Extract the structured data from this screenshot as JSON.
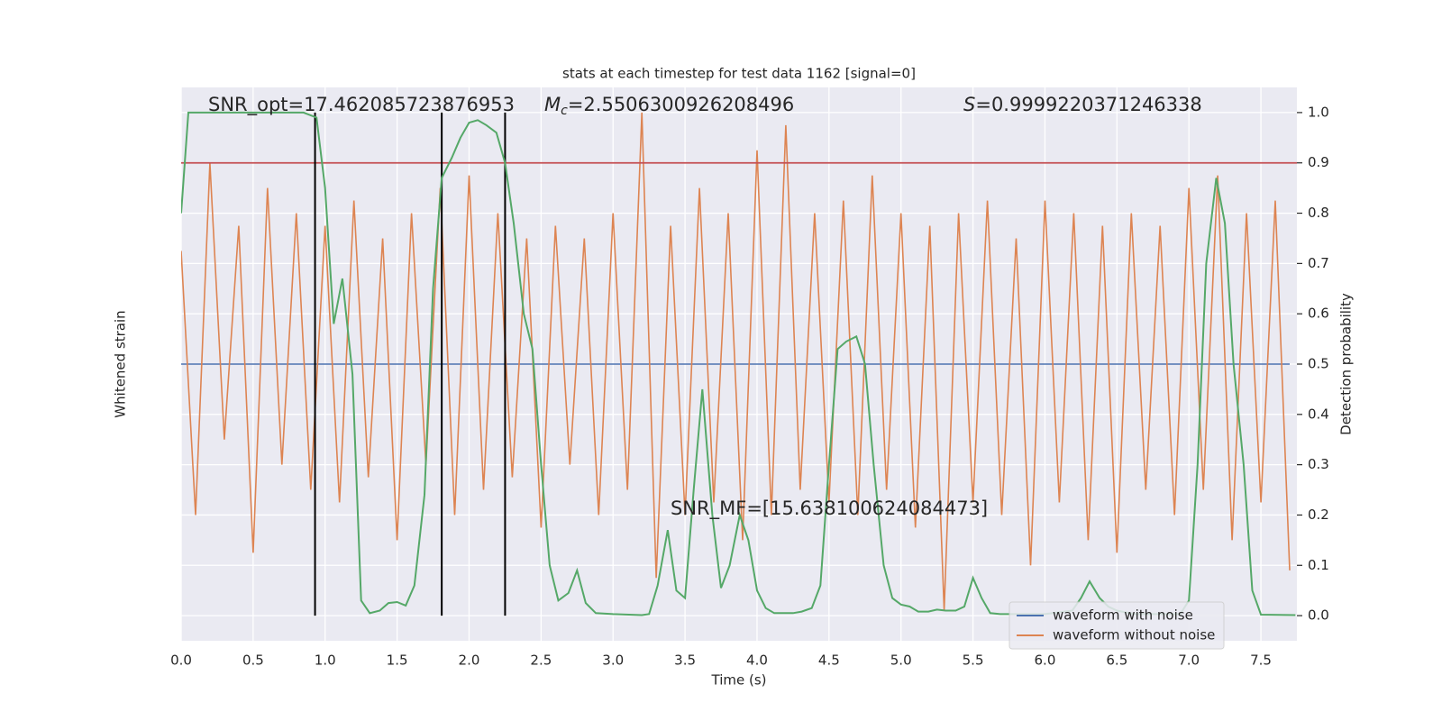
{
  "chart_data": {
    "type": "line",
    "title": "stats at each timestep for test data 1162 [signal=0]",
    "xlabel": "Time (s)",
    "ylabel": "Whitened strain",
    "y2label": "Detection probability",
    "background": "#eaeaf2",
    "grid": true,
    "legend": "lower right",
    "xlim": [
      0,
      7.75
    ],
    "xticks": [
      {
        "value": 0,
        "label": "0.0"
      },
      0.5,
      {
        "value": 1,
        "label": "1.0"
      },
      1.5,
      {
        "value": 2,
        "label": "2.0"
      },
      2.5,
      {
        "value": 3,
        "label": "3.0"
      },
      3.5,
      {
        "value": 4,
        "label": "4.0"
      },
      4.5,
      {
        "value": 5,
        "label": "5.0"
      },
      5.5,
      {
        "value": 6,
        "label": "6.0"
      },
      6.5,
      {
        "value": 7,
        "label": "7.0"
      },
      7.5
    ],
    "ylim": [
      -1.1,
      1.1
    ],
    "y2lim": [
      -0.05,
      1.05
    ],
    "y2ticks": [
      {
        "value": 0,
        "label": "0.0"
      },
      0.1,
      0.2,
      0.3,
      0.4,
      0.5,
      0.6,
      0.7,
      0.8,
      0.9,
      {
        "value": 1,
        "label": "1.0"
      }
    ],
    "x": [
      0,
      0.1,
      0.2,
      0.3,
      0.4,
      0.5,
      0.6,
      0.7,
      0.8,
      0.9,
      1,
      1.1,
      1.2,
      1.3,
      1.4,
      1.5,
      1.6,
      1.7,
      1.8,
      1.9,
      2,
      2.1,
      2.2,
      2.3,
      2.4,
      2.5,
      2.6,
      2.7,
      2.8,
      2.9,
      3,
      3.1,
      3.2,
      3.3,
      3.4,
      3.5,
      3.6,
      3.7,
      3.8,
      3.9,
      4,
      4.1,
      4.2,
      4.3,
      4.4,
      4.5,
      4.6,
      4.7,
      4.8,
      4.9,
      5,
      5.1,
      5.2,
      5.3,
      5.4,
      5.5,
      5.6,
      5.7,
      5.8,
      5.9,
      6,
      6.1,
      6.2,
      6.3,
      6.4,
      6.5,
      6.6,
      6.7,
      6.8,
      6.9,
      7,
      7.1,
      7.2,
      7.3,
      7.4,
      7.5,
      7.6,
      7.7
    ],
    "series": [
      {
        "name": "waveform with noise",
        "color": "#4c72b0",
        "values": [
          0,
          0,
          0,
          0,
          0,
          0,
          0,
          0,
          0,
          0,
          0,
          0,
          0,
          0,
          0,
          0,
          0,
          0,
          0,
          0,
          0,
          0,
          0,
          0,
          0,
          0,
          0,
          0,
          0,
          0,
          0,
          0,
          0,
          0,
          0,
          0,
          0,
          0,
          0,
          0,
          0,
          0,
          0,
          0,
          0,
          0,
          0,
          0,
          0,
          0,
          0,
          0,
          0,
          0,
          0,
          0,
          0,
          0,
          0,
          0,
          0,
          0,
          0,
          0,
          0,
          0,
          0,
          0,
          0,
          0,
          0,
          0,
          0,
          0,
          0,
          0,
          0,
          0
        ]
      },
      {
        "name": "waveform without noise",
        "color": "#dd8452",
        "values": [
          0.45,
          -0.6,
          0.8,
          -0.3,
          0.55,
          -0.75,
          0.7,
          -0.4,
          0.6,
          -0.5,
          0.55,
          -0.55,
          0.65,
          -0.45,
          0.5,
          -0.7,
          0.6,
          -0.4,
          0.7,
          -0.6,
          0.75,
          -0.5,
          0.6,
          -0.45,
          0.5,
          -0.65,
          0.55,
          -0.4,
          0.5,
          -0.6,
          0.6,
          -0.5,
          1.0,
          -0.85,
          0.55,
          -0.6,
          0.7,
          -0.55,
          0.6,
          -0.7,
          0.85,
          -0.6,
          0.95,
          -0.5,
          0.6,
          -0.55,
          0.65,
          -0.6,
          0.75,
          -0.5,
          0.6,
          -0.65,
          0.55,
          -0.98,
          0.6,
          -0.55,
          0.65,
          -0.6,
          0.5,
          -0.8,
          0.65,
          -0.55,
          0.6,
          -0.7,
          0.55,
          -0.75,
          0.6,
          -0.5,
          0.55,
          -0.6,
          0.7,
          -0.5,
          0.75,
          -0.7,
          0.6,
          -0.55,
          0.65,
          -0.82
        ]
      },
      {
        "color": "#55a868",
        "axis": "y2",
        "x": [
          0,
          0.05,
          0.12,
          0.85,
          0.94,
          1.0,
          1.06,
          1.12,
          1.19,
          1.25,
          1.31,
          1.38,
          1.44,
          1.5,
          1.56,
          1.62,
          1.69,
          1.75,
          1.81,
          1.88,
          1.94,
          2.0,
          2.06,
          2.12,
          2.19,
          2.25,
          2.31,
          2.38,
          2.44,
          2.5,
          2.56,
          2.62,
          2.69,
          2.75,
          2.81,
          2.88,
          3.0,
          3.2,
          3.25,
          3.31,
          3.38,
          3.44,
          3.5,
          3.56,
          3.62,
          3.69,
          3.75,
          3.81,
          3.88,
          3.94,
          4.0,
          4.06,
          4.12,
          4.25,
          4.31,
          4.38,
          4.44,
          4.5,
          4.56,
          4.62,
          4.69,
          4.75,
          4.81,
          4.88,
          4.94,
          5.0,
          5.06,
          5.12,
          5.19,
          5.25,
          5.31,
          5.38,
          5.44,
          5.5,
          5.56,
          5.62,
          5.69,
          6.0,
          6.19,
          6.25,
          6.31,
          6.38,
          6.44,
          6.5,
          6.62,
          6.94,
          7.0,
          7.06,
          7.12,
          7.19,
          7.25,
          7.31,
          7.38,
          7.44,
          7.5,
          7.74
        ],
        "values": [
          0.8,
          1.0,
          1.0,
          1.0,
          0.99,
          0.85,
          0.58,
          0.67,
          0.48,
          0.03,
          0.005,
          0.01,
          0.025,
          0.027,
          0.02,
          0.06,
          0.24,
          0.65,
          0.87,
          0.91,
          0.95,
          0.98,
          0.985,
          0.975,
          0.96,
          0.9,
          0.78,
          0.6,
          0.53,
          0.3,
          0.1,
          0.03,
          0.045,
          0.09,
          0.025,
          0.005,
          0.003,
          0.001,
          0.003,
          0.06,
          0.17,
          0.05,
          0.035,
          0.25,
          0.45,
          0.2,
          0.055,
          0.1,
          0.2,
          0.15,
          0.05,
          0.015,
          0.005,
          0.005,
          0.008,
          0.015,
          0.06,
          0.3,
          0.53,
          0.545,
          0.555,
          0.5,
          0.3,
          0.1,
          0.035,
          0.022,
          0.018,
          0.008,
          0.008,
          0.012,
          0.01,
          0.01,
          0.018,
          0.075,
          0.035,
          0.005,
          0.003,
          0.003,
          0.01,
          0.035,
          0.068,
          0.035,
          0.018,
          0.01,
          0.003,
          0.003,
          0.03,
          0.3,
          0.7,
          0.87,
          0.78,
          0.5,
          0.3,
          0.05,
          0.002,
          0.001
        ]
      }
    ],
    "threshold": 0.9,
    "threshold_color": "#c44e52",
    "vlines": [
      0.93,
      1.81,
      2.25
    ],
    "annotations": [
      {
        "text": "SNR_opt=17.462085723876953"
      },
      {
        "symbol": "M",
        "subscript": "c",
        "text": "=2.5506300926208496"
      },
      {
        "symbol": "S",
        "text": "=0.9999220371246338"
      },
      {
        "text": "SNR_MF=[15.638100624084473]"
      }
    ]
  }
}
